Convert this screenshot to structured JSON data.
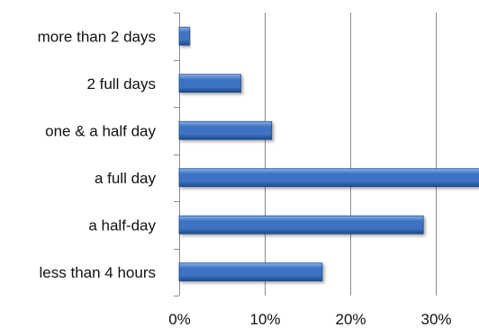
{
  "chart_data": {
    "type": "bar",
    "orientation": "horizontal",
    "categories": [
      "more than 2 days",
      "2 full days",
      "one & a half day",
      "a full day",
      "a half-day",
      "less than 4 hours"
    ],
    "values": [
      1.2,
      7.2,
      10.8,
      35.5,
      28.5,
      16.7
    ],
    "xlim": [
      0,
      35
    ],
    "xticks": [
      0,
      10,
      20,
      30
    ],
    "xtick_labels": [
      "0%",
      "10%",
      "20%",
      "30%"
    ],
    "grid": true,
    "bar_color": "#3d73c2",
    "bar_highlight": "#8db4ea",
    "bar_shadow": "#1f4a8a",
    "grid_color": "#8c8c8c",
    "title": "",
    "xlabel": "",
    "ylabel": ""
  }
}
